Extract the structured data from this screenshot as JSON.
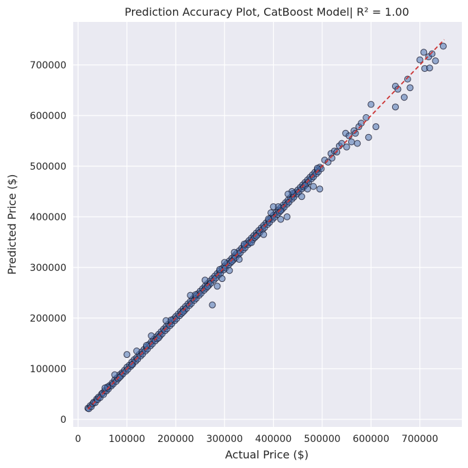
{
  "chart_data": {
    "type": "scatter",
    "title": "Prediction Accuracy Plot, CatBoost Model| R² = 1.00",
    "xlabel": "Actual Price ($)",
    "ylabel": "Predicted Price ($)",
    "xlim": [
      -10000,
      786000
    ],
    "ylim": [
      -15000,
      785000
    ],
    "xticks": [
      0,
      100000,
      200000,
      300000,
      400000,
      500000,
      600000,
      700000
    ],
    "xtick_labels": [
      "0",
      "100000",
      "200000",
      "300000",
      "400000",
      "500000",
      "600000",
      "700000"
    ],
    "yticks": [
      0,
      100000,
      200000,
      300000,
      400000,
      500000,
      600000,
      700000
    ],
    "ytick_labels": [
      "0",
      "100000",
      "200000",
      "300000",
      "400000",
      "500000",
      "600000",
      "700000"
    ],
    "grid": true,
    "reference_line": {
      "style": "dashed",
      "color": "#cc3333",
      "from": [
        20000,
        20000
      ],
      "to": [
        750000,
        750000
      ]
    },
    "marker_color": "#4c72b0",
    "marker_edge_color": "#1a1a2e",
    "series": [
      {
        "points": [
          [
            20000,
            22000
          ],
          [
            22000,
            21000
          ],
          [
            25000,
            27000
          ],
          [
            27000,
            25000
          ],
          [
            30000,
            31000
          ],
          [
            32000,
            34000
          ],
          [
            35000,
            33000
          ],
          [
            38000,
            40000
          ],
          [
            40000,
            39000
          ],
          [
            42000,
            44000
          ],
          [
            45000,
            43000
          ],
          [
            48000,
            50000
          ],
          [
            50000,
            52000
          ],
          [
            52000,
            49000
          ],
          [
            55000,
            57000
          ],
          [
            58000,
            56000
          ],
          [
            60000,
            62000
          ],
          [
            62000,
            60000
          ],
          [
            65000,
            67000
          ],
          [
            68000,
            66000
          ],
          [
            70000,
            72000
          ],
          [
            72000,
            70000
          ],
          [
            75000,
            78000
          ],
          [
            78000,
            75000
          ],
          [
            80000,
            82000
          ],
          [
            82000,
            80000
          ],
          [
            85000,
            88000
          ],
          [
            88000,
            86000
          ],
          [
            90000,
            92000
          ],
          [
            92000,
            90000
          ],
          [
            95000,
            97000
          ],
          [
            98000,
            95000
          ],
          [
            100000,
            103000
          ],
          [
            102000,
            99000
          ],
          [
            105000,
            107000
          ],
          [
            108000,
            105000
          ],
          [
            110000,
            113000
          ],
          [
            112000,
            109000
          ],
          [
            115000,
            118000
          ],
          [
            118000,
            115000
          ],
          [
            120000,
            122000
          ],
          [
            122000,
            119000
          ],
          [
            125000,
            128000
          ],
          [
            128000,
            125000
          ],
          [
            130000,
            133000
          ],
          [
            132000,
            129000
          ],
          [
            135000,
            138000
          ],
          [
            138000,
            135000
          ],
          [
            140000,
            143000
          ],
          [
            142000,
            139000
          ],
          [
            145000,
            148000
          ],
          [
            148000,
            145000
          ],
          [
            150000,
            153000
          ],
          [
            152000,
            149000
          ],
          [
            155000,
            158000
          ],
          [
            158000,
            155000
          ],
          [
            160000,
            163000
          ],
          [
            162000,
            159000
          ],
          [
            165000,
            168000
          ],
          [
            168000,
            165000
          ],
          [
            170000,
            173000
          ],
          [
            172000,
            169000
          ],
          [
            175000,
            178000
          ],
          [
            178000,
            175000
          ],
          [
            180000,
            183000
          ],
          [
            182000,
            179000
          ],
          [
            185000,
            188000
          ],
          [
            188000,
            185000
          ],
          [
            190000,
            193000
          ],
          [
            192000,
            189000
          ],
          [
            195000,
            198000
          ],
          [
            198000,
            195000
          ],
          [
            200000,
            203000
          ],
          [
            202000,
            199000
          ],
          [
            205000,
            208000
          ],
          [
            208000,
            205000
          ],
          [
            210000,
            213000
          ],
          [
            212000,
            209000
          ],
          [
            215000,
            218000
          ],
          [
            218000,
            215000
          ],
          [
            220000,
            223000
          ],
          [
            222000,
            219000
          ],
          [
            225000,
            228000
          ],
          [
            228000,
            225000
          ],
          [
            230000,
            233000
          ],
          [
            232000,
            229000
          ],
          [
            235000,
            238000
          ],
          [
            238000,
            235000
          ],
          [
            240000,
            243000
          ],
          [
            242000,
            239000
          ],
          [
            245000,
            248000
          ],
          [
            248000,
            245000
          ],
          [
            250000,
            253000
          ],
          [
            252000,
            249000
          ],
          [
            255000,
            258000
          ],
          [
            258000,
            255000
          ],
          [
            260000,
            263000
          ],
          [
            262000,
            259000
          ],
          [
            265000,
            268000
          ],
          [
            268000,
            265000
          ],
          [
            270000,
            273000
          ],
          [
            272000,
            269000
          ],
          [
            275000,
            278000
          ],
          [
            278000,
            275000
          ],
          [
            280000,
            283000
          ],
          [
            282000,
            279000
          ],
          [
            285000,
            288000
          ],
          [
            288000,
            285000
          ],
          [
            290000,
            293000
          ],
          [
            292000,
            289000
          ],
          [
            295000,
            298000
          ],
          [
            298000,
            295000
          ],
          [
            300000,
            303000
          ],
          [
            302000,
            299000
          ],
          [
            305000,
            308000
          ],
          [
            308000,
            305000
          ],
          [
            310000,
            313000
          ],
          [
            312000,
            309000
          ],
          [
            315000,
            318000
          ],
          [
            318000,
            315000
          ],
          [
            320000,
            323000
          ],
          [
            322000,
            319000
          ],
          [
            325000,
            328000
          ],
          [
            328000,
            325000
          ],
          [
            330000,
            333000
          ],
          [
            332000,
            329000
          ],
          [
            335000,
            338000
          ],
          [
            338000,
            335000
          ],
          [
            340000,
            343000
          ],
          [
            342000,
            339000
          ],
          [
            345000,
            348000
          ],
          [
            348000,
            345000
          ],
          [
            350000,
            353000
          ],
          [
            352000,
            349000
          ],
          [
            355000,
            358000
          ],
          [
            358000,
            355000
          ],
          [
            360000,
            363000
          ],
          [
            362000,
            359000
          ],
          [
            365000,
            368000
          ],
          [
            368000,
            365000
          ],
          [
            370000,
            373000
          ],
          [
            372000,
            369000
          ],
          [
            375000,
            378000
          ],
          [
            378000,
            375000
          ],
          [
            380000,
            383000
          ],
          [
            382000,
            379000
          ],
          [
            385000,
            388000
          ],
          [
            388000,
            385000
          ],
          [
            390000,
            393000
          ],
          [
            392000,
            389000
          ],
          [
            395000,
            398000
          ],
          [
            398000,
            395000
          ],
          [
            400000,
            403000
          ],
          [
            402000,
            399000
          ],
          [
            405000,
            408000
          ],
          [
            408000,
            405000
          ],
          [
            410000,
            413000
          ],
          [
            412000,
            409000
          ],
          [
            415000,
            418000
          ],
          [
            418000,
            415000
          ],
          [
            420000,
            423000
          ],
          [
            422000,
            419000
          ],
          [
            425000,
            428000
          ],
          [
            428000,
            425000
          ],
          [
            430000,
            433000
          ],
          [
            432000,
            429000
          ],
          [
            435000,
            438000
          ],
          [
            438000,
            435000
          ],
          [
            440000,
            443000
          ],
          [
            442000,
            439000
          ],
          [
            445000,
            448000
          ],
          [
            448000,
            445000
          ],
          [
            450000,
            453000
          ],
          [
            452000,
            449000
          ],
          [
            455000,
            458000
          ],
          [
            458000,
            455000
          ],
          [
            460000,
            463000
          ],
          [
            462000,
            459000
          ],
          [
            465000,
            468000
          ],
          [
            468000,
            465000
          ],
          [
            470000,
            473000
          ],
          [
            472000,
            469000
          ],
          [
            475000,
            478000
          ],
          [
            478000,
            475000
          ],
          [
            480000,
            483000
          ],
          [
            482000,
            479000
          ],
          [
            485000,
            488000
          ],
          [
            488000,
            485000
          ],
          [
            490000,
            493000
          ],
          [
            492000,
            489000
          ],
          [
            495000,
            498000
          ],
          [
            498000,
            495000
          ],
          [
            60000,
            64000
          ],
          [
            85000,
            83000
          ],
          [
            110000,
            108000
          ],
          [
            140000,
            146000
          ],
          [
            165000,
            161000
          ],
          [
            190000,
            196000
          ],
          [
            215000,
            212000
          ],
          [
            240000,
            246000
          ],
          [
            265000,
            262000
          ],
          [
            290000,
            296000
          ],
          [
            315000,
            312000
          ],
          [
            340000,
            346000
          ],
          [
            365000,
            362000
          ],
          [
            390000,
            396000
          ],
          [
            415000,
            412000
          ],
          [
            440000,
            446000
          ],
          [
            465000,
            462000
          ],
          [
            490000,
            496000
          ],
          [
            275000,
            226000
          ],
          [
            285000,
            263000
          ],
          [
            295000,
            278000
          ],
          [
            310000,
            294000
          ],
          [
            330000,
            316000
          ],
          [
            355000,
            349000
          ],
          [
            380000,
            365000
          ],
          [
            395000,
            408000
          ],
          [
            415000,
            395000
          ],
          [
            428000,
            400000
          ],
          [
            438000,
            450000
          ],
          [
            458000,
            440000
          ],
          [
            470000,
            455000
          ],
          [
            482000,
            460000
          ],
          [
            495000,
            455000
          ],
          [
            430000,
            445000
          ],
          [
            410000,
            420000
          ],
          [
            400000,
            420000
          ],
          [
            300000,
            310000
          ],
          [
            320000,
            330000
          ],
          [
            260000,
            275000
          ],
          [
            230000,
            245000
          ],
          [
            180000,
            195000
          ],
          [
            150000,
            165000
          ],
          [
            100000,
            128000
          ],
          [
            120000,
            135000
          ],
          [
            75000,
            88000
          ],
          [
            55000,
            62000
          ],
          [
            505000,
            512000
          ],
          [
            512000,
            508000
          ],
          [
            518000,
            525000
          ],
          [
            520000,
            516000
          ],
          [
            525000,
            530000
          ],
          [
            530000,
            528000
          ],
          [
            535000,
            540000
          ],
          [
            540000,
            545000
          ],
          [
            548000,
            565000
          ],
          [
            550000,
            538000
          ],
          [
            555000,
            560000
          ],
          [
            560000,
            548000
          ],
          [
            565000,
            570000
          ],
          [
            568000,
            565000
          ],
          [
            572000,
            545000
          ],
          [
            575000,
            578000
          ],
          [
            580000,
            585000
          ],
          [
            590000,
            596000
          ],
          [
            595000,
            557000
          ],
          [
            600000,
            622000
          ],
          [
            610000,
            578000
          ],
          [
            650000,
            617000
          ],
          [
            650000,
            658000
          ],
          [
            655000,
            652000
          ],
          [
            668000,
            636000
          ],
          [
            675000,
            672000
          ],
          [
            680000,
            655000
          ],
          [
            700000,
            710000
          ],
          [
            708000,
            725000
          ],
          [
            710000,
            693000
          ],
          [
            718000,
            716000
          ],
          [
            720000,
            694000
          ],
          [
            725000,
            722000
          ],
          [
            732000,
            708000
          ],
          [
            748000,
            737000
          ]
        ]
      }
    ]
  }
}
